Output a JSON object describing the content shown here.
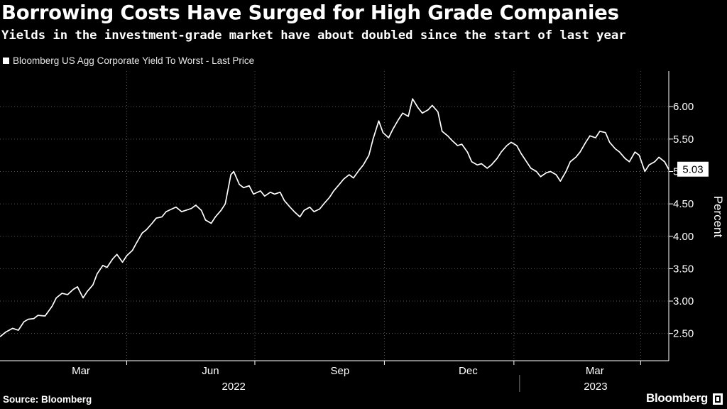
{
  "header": {
    "title": "Borrowing Costs Have Surged for High Grade Companies",
    "subtitle": "Yields in the investment-grade market have about doubled since the start of last year"
  },
  "legend": {
    "label": "Bloomberg US Agg Corporate Yield To Worst - Last Price"
  },
  "footer": {
    "source": "Source: Bloomberg",
    "brand": "Bloomberg"
  },
  "colors": {
    "background": "#000000",
    "line": "#ffffff",
    "grid": "#555555"
  },
  "chart_data": {
    "type": "line",
    "title": "Borrowing Costs Have Surged for High Grade Companies",
    "xlabel": "",
    "ylabel": "Percent",
    "ylim": [
      2.08,
      6.55
    ],
    "xlim": [
      "2022-01-01",
      "2023-04-21"
    ],
    "yticks": [
      2.5,
      3.0,
      3.5,
      4.0,
      4.5,
      5.0,
      5.5,
      6.0
    ],
    "ytick_labels": [
      "2.50",
      "3.00",
      "3.50",
      "4.00",
      "4.50",
      "5.00",
      "5.50",
      "6.00"
    ],
    "month_labels": [
      {
        "date": "2022-03-01",
        "label": "Mar"
      },
      {
        "date": "2022-06-01",
        "label": "Jun"
      },
      {
        "date": "2022-09-01",
        "label": "Sep"
      },
      {
        "date": "2022-12-01",
        "label": "Dec"
      },
      {
        "date": "2023-03-01",
        "label": "Mar"
      }
    ],
    "gridlines_x": [
      "2022-04-01",
      "2022-07-01",
      "2022-10-01",
      "2023-01-01",
      "2023-04-01"
    ],
    "year_labels": [
      {
        "date": "2022-06-16",
        "label": "2022"
      },
      {
        "date": "2023-02-28",
        "label": "2023"
      }
    ],
    "last_value": 5.03,
    "last_value_label": "5.03",
    "series": [
      {
        "name": "Bloomberg US Agg Corporate Yield To Worst - Last Price",
        "points": [
          [
            "2022-01-01",
            2.45
          ],
          [
            "2022-01-05",
            2.52
          ],
          [
            "2022-01-10",
            2.58
          ],
          [
            "2022-01-14",
            2.55
          ],
          [
            "2022-01-18",
            2.68
          ],
          [
            "2022-01-21",
            2.72
          ],
          [
            "2022-01-25",
            2.73
          ],
          [
            "2022-01-28",
            2.78
          ],
          [
            "2022-02-02",
            2.77
          ],
          [
            "2022-02-07",
            2.92
          ],
          [
            "2022-02-10",
            3.05
          ],
          [
            "2022-02-14",
            3.12
          ],
          [
            "2022-02-18",
            3.1
          ],
          [
            "2022-02-22",
            3.18
          ],
          [
            "2022-02-25",
            3.22
          ],
          [
            "2022-03-01",
            3.05
          ],
          [
            "2022-03-04",
            3.15
          ],
          [
            "2022-03-08",
            3.25
          ],
          [
            "2022-03-11",
            3.42
          ],
          [
            "2022-03-15",
            3.55
          ],
          [
            "2022-03-18",
            3.52
          ],
          [
            "2022-03-22",
            3.65
          ],
          [
            "2022-03-25",
            3.72
          ],
          [
            "2022-03-29",
            3.6
          ],
          [
            "2022-04-01",
            3.7
          ],
          [
            "2022-04-05",
            3.78
          ],
          [
            "2022-04-08",
            3.9
          ],
          [
            "2022-04-12",
            4.05
          ],
          [
            "2022-04-15",
            4.1
          ],
          [
            "2022-04-19",
            4.2
          ],
          [
            "2022-04-22",
            4.28
          ],
          [
            "2022-04-26",
            4.3
          ],
          [
            "2022-04-29",
            4.38
          ],
          [
            "2022-05-03",
            4.42
          ],
          [
            "2022-05-06",
            4.45
          ],
          [
            "2022-05-10",
            4.38
          ],
          [
            "2022-05-13",
            4.4
          ],
          [
            "2022-05-17",
            4.43
          ],
          [
            "2022-05-20",
            4.48
          ],
          [
            "2022-05-24",
            4.4
          ],
          [
            "2022-05-27",
            4.25
          ],
          [
            "2022-05-31",
            4.2
          ],
          [
            "2022-06-03",
            4.3
          ],
          [
            "2022-06-07",
            4.4
          ],
          [
            "2022-06-10",
            4.5
          ],
          [
            "2022-06-14",
            4.95
          ],
          [
            "2022-06-16",
            5.0
          ],
          [
            "2022-06-20",
            4.8
          ],
          [
            "2022-06-23",
            4.75
          ],
          [
            "2022-06-27",
            4.78
          ],
          [
            "2022-06-30",
            4.65
          ],
          [
            "2022-07-05",
            4.7
          ],
          [
            "2022-07-08",
            4.62
          ],
          [
            "2022-07-12",
            4.68
          ],
          [
            "2022-07-15",
            4.65
          ],
          [
            "2022-07-19",
            4.68
          ],
          [
            "2022-07-22",
            4.55
          ],
          [
            "2022-07-26",
            4.45
          ],
          [
            "2022-07-29",
            4.38
          ],
          [
            "2022-08-02",
            4.3
          ],
          [
            "2022-08-05",
            4.4
          ],
          [
            "2022-08-09",
            4.45
          ],
          [
            "2022-08-12",
            4.38
          ],
          [
            "2022-08-16",
            4.42
          ],
          [
            "2022-08-19",
            4.5
          ],
          [
            "2022-08-23",
            4.6
          ],
          [
            "2022-08-26",
            4.7
          ],
          [
            "2022-08-30",
            4.8
          ],
          [
            "2022-09-02",
            4.88
          ],
          [
            "2022-09-06",
            4.95
          ],
          [
            "2022-09-09",
            4.9
          ],
          [
            "2022-09-13",
            5.02
          ],
          [
            "2022-09-16",
            5.1
          ],
          [
            "2022-09-20",
            5.25
          ],
          [
            "2022-09-23",
            5.5
          ],
          [
            "2022-09-27",
            5.78
          ],
          [
            "2022-09-30",
            5.6
          ],
          [
            "2022-10-04",
            5.52
          ],
          [
            "2022-10-07",
            5.65
          ],
          [
            "2022-10-11",
            5.8
          ],
          [
            "2022-10-14",
            5.9
          ],
          [
            "2022-10-18",
            5.85
          ],
          [
            "2022-10-21",
            6.12
          ],
          [
            "2022-10-25",
            5.98
          ],
          [
            "2022-10-28",
            5.9
          ],
          [
            "2022-11-01",
            5.95
          ],
          [
            "2022-11-04",
            6.02
          ],
          [
            "2022-11-08",
            5.92
          ],
          [
            "2022-11-11",
            5.62
          ],
          [
            "2022-11-15",
            5.55
          ],
          [
            "2022-11-18",
            5.48
          ],
          [
            "2022-11-22",
            5.4
          ],
          [
            "2022-11-25",
            5.42
          ],
          [
            "2022-11-29",
            5.3
          ],
          [
            "2022-12-02",
            5.15
          ],
          [
            "2022-12-06",
            5.1
          ],
          [
            "2022-12-09",
            5.12
          ],
          [
            "2022-12-13",
            5.05
          ],
          [
            "2022-12-16",
            5.1
          ],
          [
            "2022-12-20",
            5.2
          ],
          [
            "2022-12-23",
            5.3
          ],
          [
            "2022-12-27",
            5.4
          ],
          [
            "2022-12-30",
            5.45
          ],
          [
            "2023-01-03",
            5.4
          ],
          [
            "2023-01-06",
            5.28
          ],
          [
            "2023-01-10",
            5.15
          ],
          [
            "2023-01-13",
            5.05
          ],
          [
            "2023-01-17",
            5.0
          ],
          [
            "2023-01-20",
            4.92
          ],
          [
            "2023-01-24",
            4.98
          ],
          [
            "2023-01-27",
            5.0
          ],
          [
            "2023-01-31",
            4.95
          ],
          [
            "2023-02-03",
            4.85
          ],
          [
            "2023-02-07",
            5.0
          ],
          [
            "2023-02-10",
            5.15
          ],
          [
            "2023-02-14",
            5.22
          ],
          [
            "2023-02-17",
            5.3
          ],
          [
            "2023-02-21",
            5.45
          ],
          [
            "2023-02-24",
            5.55
          ],
          [
            "2023-02-28",
            5.52
          ],
          [
            "2023-03-03",
            5.62
          ],
          [
            "2023-03-07",
            5.6
          ],
          [
            "2023-03-10",
            5.45
          ],
          [
            "2023-03-14",
            5.35
          ],
          [
            "2023-03-17",
            5.3
          ],
          [
            "2023-03-21",
            5.2
          ],
          [
            "2023-03-24",
            5.15
          ],
          [
            "2023-03-28",
            5.3
          ],
          [
            "2023-03-31",
            5.25
          ],
          [
            "2023-04-04",
            5.0
          ],
          [
            "2023-04-07",
            5.1
          ],
          [
            "2023-04-11",
            5.15
          ],
          [
            "2023-04-14",
            5.22
          ],
          [
            "2023-04-18",
            5.15
          ],
          [
            "2023-04-21",
            5.03
          ]
        ]
      }
    ]
  }
}
